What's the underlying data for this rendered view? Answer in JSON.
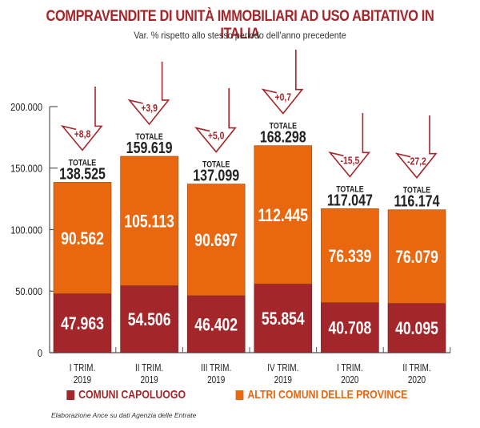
{
  "title": "COMPRAVENDITE DI UNITÀ IMMOBILIARI AD USO ABITATIVO IN ITALIA",
  "subtitle": "Var. % rispetto allo stesso periodo dell'anno precedente",
  "source": "Elaborazione Ance su dati Agenzia delle Entrate",
  "colors": {
    "capoluogo": "#a3262a",
    "altri": "#e8670f",
    "arrow": "#a3262a",
    "axis": "#555555",
    "title": "#a3262a"
  },
  "legend": [
    {
      "label": "COMUNI CAPOLUOGO",
      "color": "#a3262a"
    },
    {
      "label": "ALTRI COMUNI DELLE PROVINCE",
      "color": "#e8670f"
    }
  ],
  "chart_data": {
    "type": "bar",
    "stacked": true,
    "title": "COMPRAVENDITE DI UNITÀ IMMOBILIARI AD USO ABITATIVO IN ITALIA",
    "subtitle": "Var. % rispetto allo stesso periodo dell'anno precedente",
    "xlabel": "",
    "ylabel": "",
    "ylim": [
      0,
      200000
    ],
    "yticks": [
      0,
      50000,
      100000,
      150000,
      200000
    ],
    "ytick_labels": [
      "0",
      "50.000",
      "100.000",
      "150.000",
      "200.000"
    ],
    "grid": false,
    "legend_position": "bottom",
    "categories": [
      {
        "line1": "I TRIM.",
        "line2": "2019"
      },
      {
        "line1": "II TRIM.",
        "line2": "2019"
      },
      {
        "line1": "III TRIM.",
        "line2": "2019"
      },
      {
        "line1": "IV TRIM.",
        "line2": "2019"
      },
      {
        "line1": "I TRIM.",
        "line2": "2020"
      },
      {
        "line1": "II TRIM.",
        "line2": "2020"
      }
    ],
    "series": [
      {
        "name": "COMUNI CAPOLUOGO",
        "values": [
          47963,
          54506,
          46402,
          55854,
          40708,
          40095
        ],
        "labels": [
          "47.963",
          "54.506",
          "46.402",
          "55.854",
          "40.708",
          "40.095"
        ]
      },
      {
        "name": "ALTRI COMUNI DELLE PROVINCE",
        "values": [
          90562,
          105113,
          90697,
          112445,
          76339,
          76079
        ],
        "labels": [
          "90.562",
          "105.113",
          "90.697",
          "112.445",
          "76.339",
          "76.079"
        ]
      }
    ],
    "total_label": "TOTALE",
    "totals": [
      138525,
      159619,
      137099,
      168298,
      117047,
      116174
    ],
    "total_labels": [
      "138.525",
      "159.619",
      "137.099",
      "168.298",
      "117.047",
      "116.174"
    ],
    "var_pct": [
      8.8,
      3.9,
      5.0,
      0.7,
      -15.5,
      -27.2
    ],
    "var_pct_labels": [
      "+8,8",
      "+3,9",
      "+5,0",
      "+0,7",
      "-15,5",
      "-27,2"
    ]
  }
}
